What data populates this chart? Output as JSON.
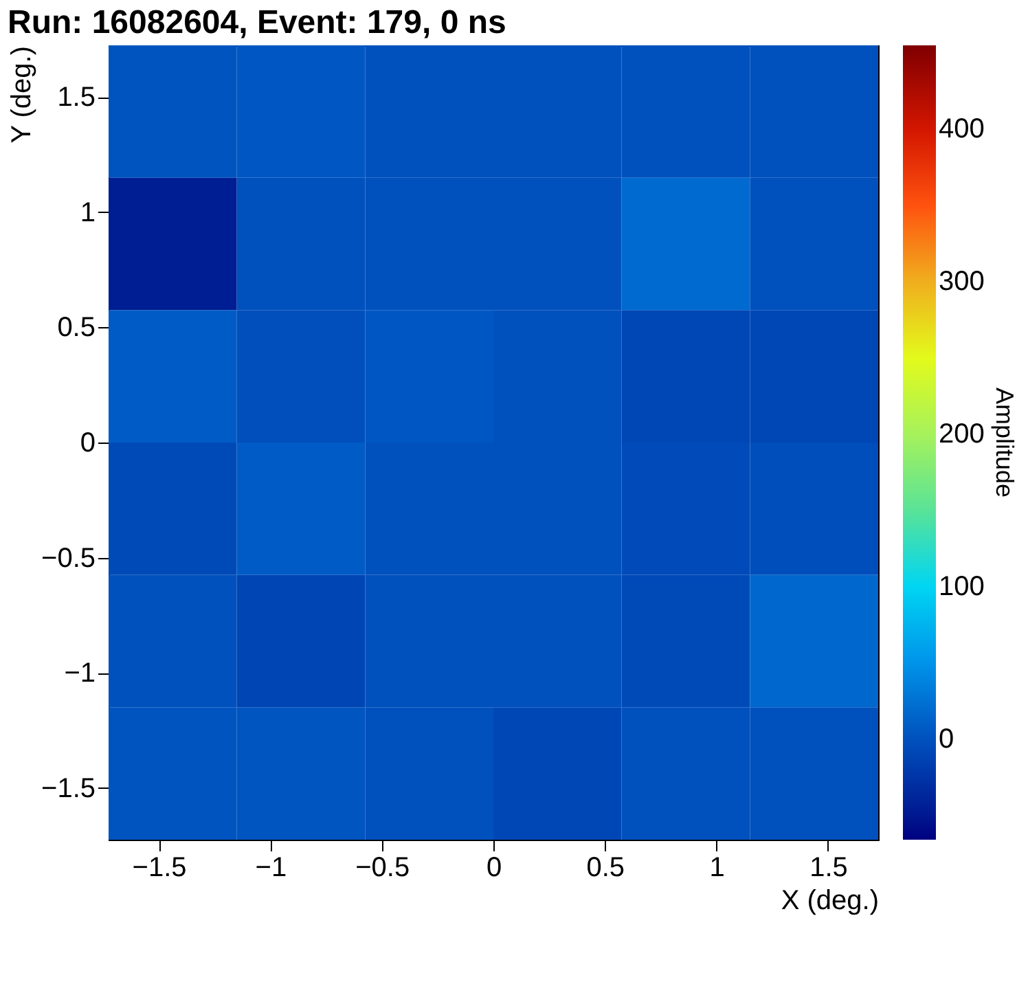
{
  "chart_data": {
    "type": "heatmap",
    "title": "Run: 16082604, Event: 179, 0 ns",
    "xlabel": "X (deg.)",
    "ylabel": "Y (deg.)",
    "clabel": "Amplitude",
    "x": [
      -1.4375,
      -0.8625,
      -0.2875,
      0.2875,
      0.8625,
      1.4375
    ],
    "y": [
      1.4375,
      0.8625,
      0.2875,
      -0.2875,
      -0.8625,
      -1.4375
    ],
    "cells": [
      [
        2,
        5,
        0,
        0,
        0,
        0
      ],
      [
        -45,
        0,
        0,
        0,
        20,
        0
      ],
      [
        8,
        -2,
        5,
        0,
        -8,
        -8
      ],
      [
        -6,
        8,
        0,
        0,
        -5,
        -3
      ],
      [
        0,
        -10,
        0,
        0,
        -6,
        18
      ],
      [
        2,
        3,
        0,
        -8,
        0,
        0
      ]
    ],
    "xlim": [
      -1.725,
      1.725
    ],
    "xticks": [
      {
        "value": -1.5,
        "label": "−1.5"
      },
      {
        "value": -1,
        "label": "−1"
      },
      {
        "value": -0.5,
        "label": "−0.5"
      },
      0,
      0.5,
      1,
      1.5
    ],
    "ylim": [
      -1.725,
      1.725
    ],
    "yticks": [
      {
        "value": -1.5,
        "label": "−1.5"
      },
      {
        "value": -1,
        "label": "−1"
      },
      {
        "value": -0.5,
        "label": "−0.5"
      },
      0,
      0.5,
      1,
      1.5
    ],
    "clim": [
      -66,
      455
    ],
    "cticks": [
      0,
      100,
      200,
      300,
      400
    ],
    "grid": false
  }
}
